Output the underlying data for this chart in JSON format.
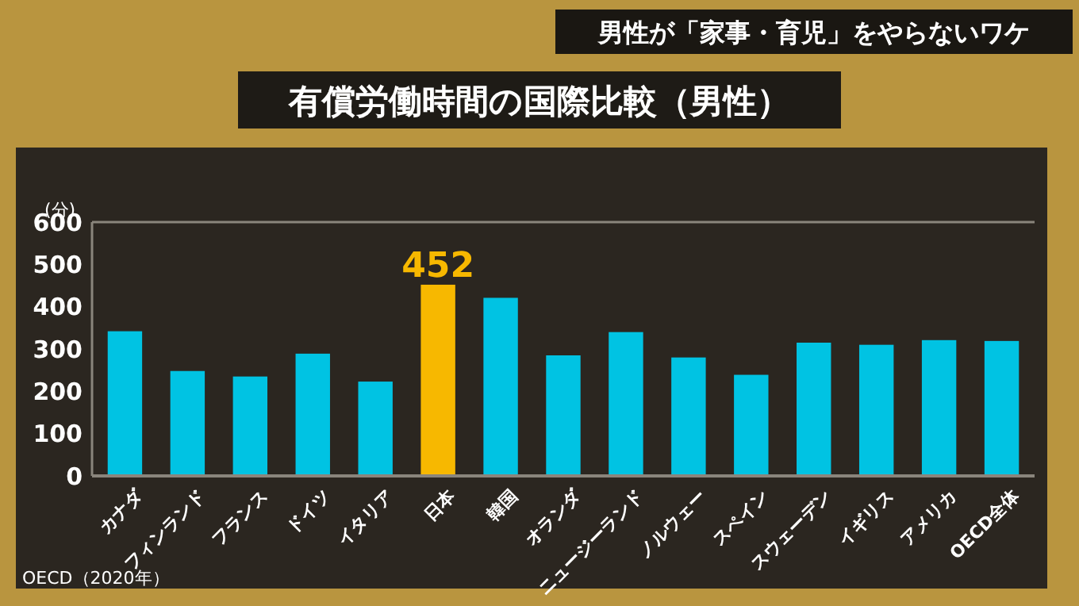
{
  "chart_data": {
    "type": "bar",
    "title": "有償労働時間の国際比較（男性）",
    "subtitle": "男性が「家事・育児」をやらないワケ",
    "ylabel": "(分)",
    "categories": [
      "カナダ",
      "フィンランド",
      "フランス",
      "ドイツ",
      "イタリア",
      "日本",
      "韓国",
      "オランダ",
      "ニュージーランド",
      "ノルウェー",
      "スペイン",
      "スウェーデン",
      "イギリス",
      "アメリカ",
      "OECD全体"
    ],
    "values": [
      342,
      248,
      235,
      289,
      223,
      452,
      421,
      285,
      340,
      280,
      239,
      315,
      310,
      321,
      319
    ],
    "colors": [
      "#00c3e3",
      "#00c3e3",
      "#00c3e3",
      "#00c3e3",
      "#00c3e3",
      "#f7b800",
      "#00c3e3",
      "#00c3e3",
      "#00c3e3",
      "#00c3e3",
      "#00c3e3",
      "#00c3e3",
      "#00c3e3",
      "#00c3e3",
      "#00c3e3"
    ],
    "value_labels": [
      null,
      null,
      null,
      null,
      null,
      "452",
      null,
      null,
      null,
      null,
      null,
      null,
      null,
      null,
      null
    ],
    "ylim": [
      0,
      600
    ],
    "yticks": [
      0,
      100,
      200,
      300,
      400,
      500,
      600
    ],
    "grid": false,
    "annotations": [
      "OECD（2020年）"
    ]
  }
}
